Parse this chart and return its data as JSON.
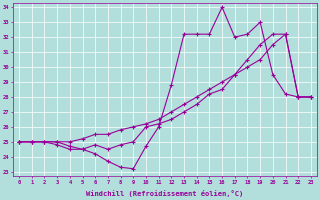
{
  "xlabel": "Windchill (Refroidissement éolien,°C)",
  "xlim": [
    -0.5,
    23.5
  ],
  "ylim": [
    22.7,
    34.3
  ],
  "yticks": [
    23,
    24,
    25,
    26,
    27,
    28,
    29,
    30,
    31,
    32,
    33,
    34
  ],
  "xticks": [
    0,
    1,
    2,
    3,
    4,
    5,
    6,
    7,
    8,
    9,
    10,
    11,
    12,
    13,
    14,
    15,
    16,
    17,
    18,
    19,
    20,
    21,
    22,
    23
  ],
  "background_color": "#b2dfdb",
  "line_color": "#990099",
  "grid_color": "#ffffff",
  "line1_y": [
    25.0,
    25.0,
    25.0,
    25.0,
    24.7,
    24.5,
    24.2,
    23.7,
    23.3,
    23.2,
    24.7,
    26.0,
    28.8,
    32.2,
    32.2,
    32.2,
    34.0,
    32.0,
    32.2,
    33.0,
    29.5,
    28.2,
    28.0,
    28.0
  ],
  "line2_y": [
    25.0,
    25.0,
    25.0,
    25.0,
    25.0,
    25.2,
    25.5,
    25.5,
    25.8,
    26.0,
    26.2,
    26.5,
    27.0,
    27.5,
    28.0,
    28.5,
    29.0,
    29.5,
    30.0,
    30.5,
    31.5,
    32.2,
    28.0,
    28.0
  ],
  "line3_y": [
    25.0,
    25.0,
    25.0,
    24.8,
    24.5,
    24.5,
    24.8,
    24.5,
    24.8,
    25.0,
    26.0,
    26.2,
    26.5,
    27.0,
    27.5,
    28.2,
    28.5,
    29.5,
    30.5,
    31.5,
    32.2,
    32.2,
    28.0,
    28.0
  ]
}
